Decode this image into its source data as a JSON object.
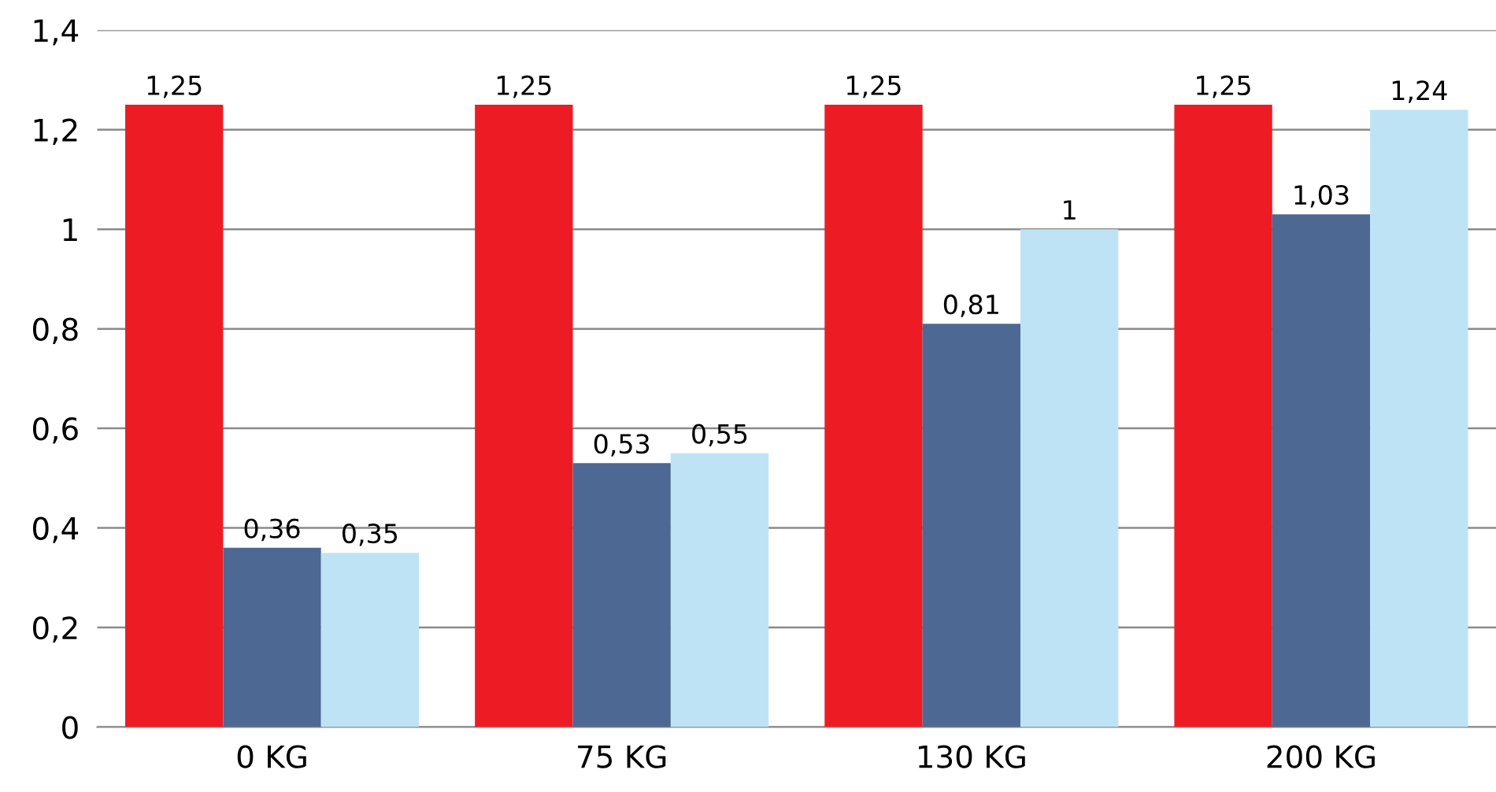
{
  "chart_data": {
    "type": "bar",
    "categories": [
      "0 KG",
      "75 KG",
      "130 KG",
      "200 KG"
    ],
    "series": [
      {
        "color": "#ed1c24",
        "values": [
          1.25,
          1.25,
          1.25,
          1.25
        ],
        "value_labels": [
          "1,25",
          "1,25",
          "1,25",
          "1,25"
        ]
      },
      {
        "color": "#4d6893",
        "values": [
          0.36,
          0.53,
          0.81,
          1.03
        ],
        "value_labels": [
          "0,36",
          "0,53",
          "0,81",
          "1,03"
        ]
      },
      {
        "color": "#bee3f5",
        "values": [
          0.35,
          0.55,
          1,
          1.24
        ],
        "value_labels": [
          "0,35",
          "0,55",
          "1",
          "1,24"
        ]
      }
    ],
    "ylim": [
      0,
      1.4
    ],
    "yticks": [
      0,
      {
        "value": 0.2,
        "label": "0,2"
      },
      {
        "value": 0.4,
        "label": "0,4"
      },
      {
        "value": 0.6,
        "label": "0,6"
      },
      {
        "value": 0.8,
        "label": "0,8"
      },
      1,
      {
        "value": 1.2,
        "label": "1,2"
      },
      {
        "value": 1.4,
        "label": "1,4"
      }
    ],
    "grid": "y",
    "legend": false
  }
}
